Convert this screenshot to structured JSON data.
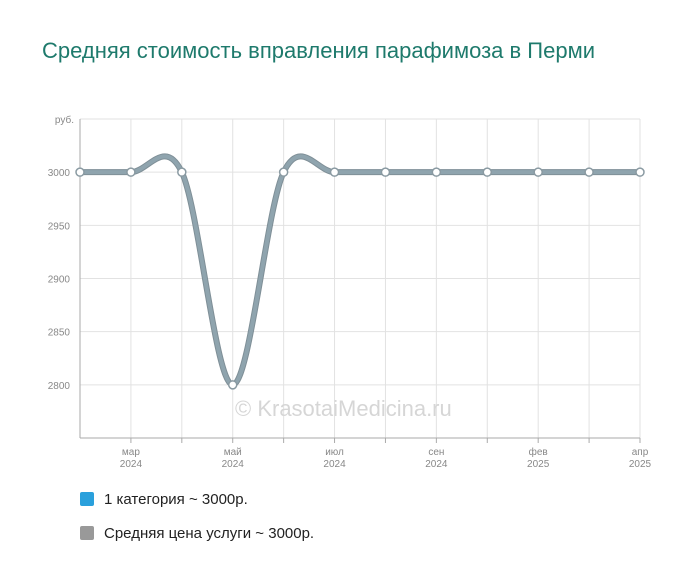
{
  "chart_data": {
    "type": "line",
    "title": "Средняя стоимость вправления парафимоза в Перми",
    "y_unit": "руб.",
    "ylim": [
      2750,
      3050
    ],
    "y_ticks": [
      2800,
      2850,
      2900,
      2950,
      3000
    ],
    "grid": true,
    "x_tick_labels": [
      {
        "month": "мар",
        "year": "2024",
        "index": 1
      },
      {
        "month": "май",
        "year": "2024",
        "index": 3
      },
      {
        "month": "июл",
        "year": "2024",
        "index": 5
      },
      {
        "month": "сен",
        "year": "2024",
        "index": 7
      },
      {
        "month": "фев",
        "year": "2025",
        "index": 9
      },
      {
        "month": "апр",
        "year": "2025",
        "index": 11
      }
    ],
    "series": [
      {
        "name": "Средняя цена услуги ~ 3000р.",
        "color": "#8fa4ae",
        "values": [
          3000,
          3000,
          3000,
          2800,
          3000,
          3000,
          3000,
          3000,
          3000,
          3000,
          3000,
          3000
        ]
      }
    ],
    "legend_position": "bottom-left",
    "legend": [
      {
        "label": "1 категория ~ 3000р.",
        "color": "#2aa0dc"
      },
      {
        "label": "Средняя цена услуги ~ 3000р.",
        "color": "#999999"
      }
    ]
  },
  "watermark": "© KrasotaiMedicina.ru"
}
